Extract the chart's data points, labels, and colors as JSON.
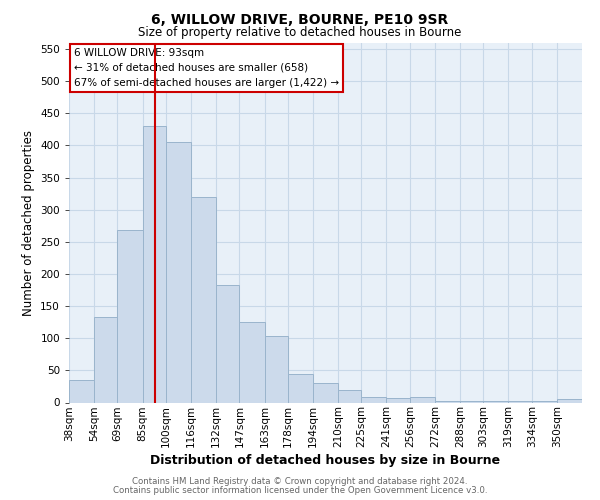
{
  "title1": "6, WILLOW DRIVE, BOURNE, PE10 9SR",
  "title2": "Size of property relative to detached houses in Bourne",
  "xlabel": "Distribution of detached houses by size in Bourne",
  "ylabel": "Number of detached properties",
  "footer1": "Contains HM Land Registry data © Crown copyright and database right 2024.",
  "footer2": "Contains public sector information licensed under the Open Government Licence v3.0.",
  "categories": [
    "38sqm",
    "54sqm",
    "69sqm",
    "85sqm",
    "100sqm",
    "116sqm",
    "132sqm",
    "147sqm",
    "163sqm",
    "178sqm",
    "194sqm",
    "210sqm",
    "225sqm",
    "241sqm",
    "256sqm",
    "272sqm",
    "288sqm",
    "303sqm",
    "319sqm",
    "334sqm",
    "350sqm"
  ],
  "values": [
    35,
    133,
    268,
    430,
    405,
    320,
    183,
    125,
    103,
    45,
    30,
    20,
    8,
    7,
    8,
    3,
    3,
    3,
    3,
    3,
    6
  ],
  "bar_color": "#ccdaeb",
  "bar_edge_color": "#9ab4cc",
  "bin_starts": [
    38,
    54,
    69,
    85,
    100,
    116,
    132,
    147,
    163,
    178,
    194,
    210,
    225,
    241,
    256,
    272,
    288,
    303,
    319,
    334,
    350
  ],
  "bin_ends": [
    54,
    69,
    85,
    100,
    116,
    132,
    147,
    163,
    178,
    194,
    210,
    225,
    241,
    256,
    272,
    288,
    303,
    319,
    334,
    350,
    366
  ],
  "ylim": [
    0,
    560
  ],
  "yticks": [
    0,
    50,
    100,
    150,
    200,
    250,
    300,
    350,
    400,
    450,
    500,
    550
  ],
  "xlim_left": 38,
  "xlim_right": 366,
  "red_line_x": 93,
  "annotation_text": "6 WILLOW DRIVE: 93sqm\n← 31% of detached houses are smaller (658)\n67% of semi-detached houses are larger (1,422) →",
  "red_line_color": "#cc0000",
  "ann_edge_color": "#cc0000",
  "grid_color": "#c8d8e8",
  "bg_color": "#e8f0f8",
  "title1_fontsize": 10,
  "title2_fontsize": 8.5,
  "xlabel_fontsize": 9,
  "ylabel_fontsize": 8.5,
  "tick_fontsize": 7.5,
  "footer_fontsize": 6.2,
  "ann_fontsize": 7.5
}
